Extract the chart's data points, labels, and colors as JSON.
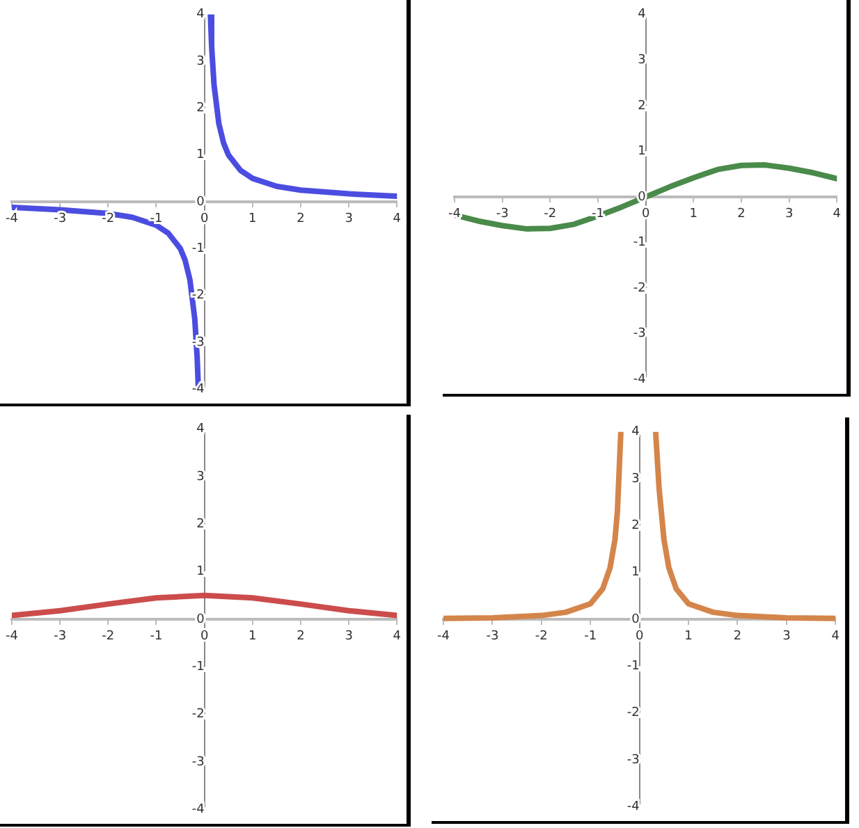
{
  "chart_data": [
    {
      "type": "line",
      "marker": "none",
      "xlim": [
        -4,
        4
      ],
      "ylim": [
        -4,
        4
      ],
      "xticks": [
        -4,
        -3,
        -2,
        -1,
        0,
        1,
        2,
        3,
        4
      ],
      "yticks": [
        -4,
        -3,
        -2,
        -1,
        0,
        1,
        2,
        3,
        4
      ],
      "series": [
        {
          "color": "#4b4de0",
          "x": [
            -4,
            -3,
            -2,
            -1.5,
            -1,
            -0.75,
            -0.5,
            -0.4,
            -0.3,
            -0.2,
            -0.15,
            -0.125,
            0,
            0.125,
            0.15,
            0.2,
            0.3,
            0.4,
            0.5,
            0.75,
            1,
            1.5,
            2,
            3,
            4
          ],
          "values": [
            -0.12,
            -0.17,
            -0.25,
            -0.33,
            -0.5,
            -0.67,
            -1,
            -1.25,
            -1.67,
            -2.5,
            -3.33,
            -4,
            null,
            4,
            3.33,
            2.5,
            1.67,
            1.25,
            1,
            0.67,
            0.5,
            0.33,
            0.25,
            0.17,
            0.12
          ]
        }
      ]
    },
    {
      "type": "line",
      "marker": "none",
      "xlim": [
        -4,
        4
      ],
      "ylim": [
        -4,
        4
      ],
      "xticks": [
        -4,
        -3,
        -2,
        -1,
        0,
        1,
        2,
        3,
        4
      ],
      "yticks": [
        -4,
        -3,
        -2,
        -1,
        0,
        1,
        2,
        3,
        4
      ],
      "series": [
        {
          "color": "#4a8a4a",
          "x": [
            -4,
            -3.5,
            -3,
            -2.5,
            -2,
            -1.5,
            -1,
            -0.5,
            0,
            0.5,
            1,
            1.5,
            2,
            2.5,
            3,
            3.5,
            4
          ],
          "values": [
            -0.4,
            -0.53,
            -0.63,
            -0.7,
            -0.69,
            -0.6,
            -0.42,
            -0.22,
            0,
            0.22,
            0.42,
            0.6,
            0.69,
            0.7,
            0.63,
            0.53,
            0.4
          ]
        }
      ]
    },
    {
      "type": "line",
      "marker": "none",
      "xlim": [
        -4,
        4
      ],
      "ylim": [
        -4,
        4
      ],
      "xticks": [
        -4,
        -3,
        -2,
        -1,
        0,
        1,
        2,
        3,
        4
      ],
      "yticks": [
        -4,
        -3,
        -2,
        -1,
        0,
        1,
        2,
        3,
        4
      ],
      "series": [
        {
          "color": "#cc4c4c",
          "x": [
            -4,
            -3,
            -2,
            -1,
            0,
            1,
            2,
            3,
            4
          ],
          "values": [
            0.08,
            0.18,
            0.32,
            0.45,
            0.5,
            0.45,
            0.32,
            0.18,
            0.08
          ]
        }
      ]
    },
    {
      "type": "line",
      "marker": "none",
      "xlim": [
        -4,
        4
      ],
      "ylim": [
        -4,
        4
      ],
      "xticks": [
        -4,
        -3,
        -2,
        -1,
        0,
        1,
        2,
        3,
        4
      ],
      "yticks": [
        -4,
        -3,
        -2,
        -1,
        0,
        1,
        2,
        3,
        4
      ],
      "series": [
        {
          "color": "#d4854a",
          "x": [
            -4,
            -3,
            -2,
            -1.5,
            -1,
            -0.75,
            -0.6,
            -0.5,
            -0.45,
            -0.38,
            0,
            0.33,
            0.4,
            0.5,
            0.6,
            0.75,
            1,
            1.5,
            2,
            3,
            4
          ],
          "values": [
            0.02,
            0.03,
            0.08,
            0.15,
            0.33,
            0.65,
            1.1,
            1.7,
            2.3,
            4,
            null,
            4,
            2.8,
            1.7,
            1.1,
            0.65,
            0.33,
            0.15,
            0.08,
            0.03,
            0.02
          ]
        }
      ]
    }
  ]
}
